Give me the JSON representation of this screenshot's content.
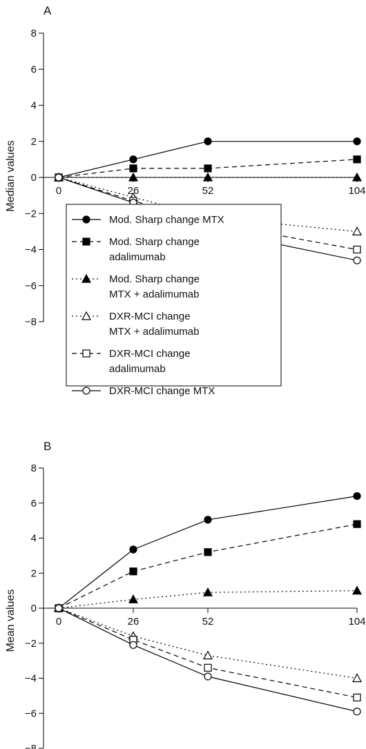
{
  "chart_data": [
    {
      "panel_label": "A",
      "type": "line",
      "ylabel": "Median values",
      "xlabel": "",
      "x": [
        0,
        26,
        52,
        104
      ],
      "x_tick_labels": [
        "0",
        "26",
        "52",
        "104"
      ],
      "ylim": [
        -8,
        8
      ],
      "y_ticks": [
        8,
        6,
        4,
        2,
        0,
        -2,
        -4,
        -6,
        -8
      ],
      "y_tick_labels": [
        "8",
        "6",
        "4",
        "2",
        "0",
        "−2",
        "−4",
        "−6",
        "−8"
      ],
      "grid": false,
      "legend_position": "bottom-left",
      "series": [
        {
          "name": "Mod. Sharp change MTX",
          "legend_lines": [
            "Mod. Sharp change MTX"
          ],
          "marker": "filled-circle",
          "line": "solid",
          "values": [
            0,
            1,
            2,
            2
          ]
        },
        {
          "name": "Mod. Sharp change adalimumab",
          "legend_lines": [
            "Mod. Sharp change",
            "adalimumab"
          ],
          "marker": "filled-square",
          "line": "dashed",
          "values": [
            0,
            0.5,
            0.5,
            1
          ]
        },
        {
          "name": "Mod. Sharp change MTX + adalimumab",
          "legend_lines": [
            "Mod. Sharp change",
            "MTX + adalimumab"
          ],
          "marker": "filled-triangle",
          "line": "dotted",
          "values": [
            0,
            0,
            0,
            0
          ]
        },
        {
          "name": "DXR-MCI change MTX + adalimumab",
          "legend_lines": [
            "DXR-MCI change",
            "MTX + adalimumab"
          ],
          "marker": "open-triangle",
          "line": "dotted",
          "values": [
            0,
            -1.1,
            -2.2,
            -3
          ]
        },
        {
          "name": "DXR-MCI change adalimumab",
          "legend_lines": [
            "DXR-MCI change",
            "adalimumab"
          ],
          "marker": "open-square",
          "line": "dashed",
          "values": [
            0,
            -1.3,
            -2.5,
            -4
          ]
        },
        {
          "name": "DXR-MCI change MTX",
          "legend_lines": [
            "DXR-MCI change MTX"
          ],
          "marker": "open-circle",
          "line": "solid",
          "values": [
            0,
            -1.4,
            -2.9,
            -4.6
          ]
        }
      ]
    },
    {
      "panel_label": "B",
      "type": "line",
      "ylabel": "Mean values",
      "xlabel": "",
      "x": [
        0,
        26,
        52,
        104
      ],
      "x_tick_labels": [
        "0",
        "26",
        "52",
        "104"
      ],
      "ylim": [
        -8,
        8
      ],
      "y_ticks": [
        8,
        6,
        4,
        2,
        0,
        -2,
        -4,
        -6,
        -8
      ],
      "y_tick_labels": [
        "8",
        "6",
        "4",
        "2",
        "0",
        "−2",
        "−4",
        "−6",
        "−8"
      ],
      "grid": false,
      "series": [
        {
          "name": "Mod. Sharp change MTX",
          "marker": "filled-circle",
          "line": "solid",
          "values": [
            0,
            3.35,
            5.05,
            6.4
          ]
        },
        {
          "name": "Mod. Sharp change adalimumab",
          "marker": "filled-square",
          "line": "dashed",
          "values": [
            0,
            2.1,
            3.2,
            4.8
          ]
        },
        {
          "name": "Mod. Sharp change MTX + adalimumab",
          "marker": "filled-triangle",
          "line": "dotted",
          "values": [
            0,
            0.5,
            0.9,
            1.0
          ]
        },
        {
          "name": "DXR-MCI change MTX + adalimumab",
          "marker": "open-triangle",
          "line": "dotted",
          "values": [
            0,
            -1.6,
            -2.7,
            -4.0
          ]
        },
        {
          "name": "DXR-MCI change adalimumab",
          "marker": "open-square",
          "line": "dashed",
          "values": [
            0,
            -1.8,
            -3.4,
            -5.1
          ]
        },
        {
          "name": "DXR-MCI change MTX",
          "marker": "open-circle",
          "line": "solid",
          "values": [
            0,
            -2.1,
            -3.9,
            -5.9
          ]
        }
      ]
    }
  ]
}
